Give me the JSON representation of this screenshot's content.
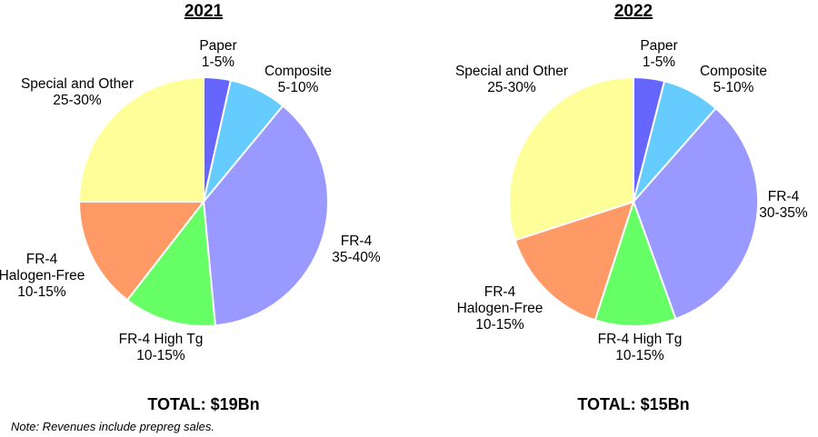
{
  "colors": {
    "Paper": "#6666ff",
    "Composite": "#66ccff",
    "FR-4": "#9999ff",
    "FR-4 High Tg": "#66ff66",
    "FR-4 Halogen-Free": "#ff9966",
    "Special and Other": "#ffff99"
  },
  "chart_data": [
    {
      "type": "pie",
      "title": "2021",
      "total_label": "TOTAL: $19Bn",
      "slices": [
        {
          "name": "Paper",
          "range": "1-5%",
          "value": 3.5
        },
        {
          "name": "Composite",
          "range": "5-10%",
          "value": 7.5
        },
        {
          "name": "FR-4",
          "range": "35-40%",
          "value": 37.5
        },
        {
          "name": "FR-4 High Tg",
          "range": "10-15%",
          "value": 12.0
        },
        {
          "name": "FR-4 Halogen-Free",
          "range": "10-15%",
          "value": 14.5
        },
        {
          "name": "Special and Other",
          "range": "25-30%",
          "value": 25.0
        }
      ]
    },
    {
      "type": "pie",
      "title": "2022",
      "total_label": "TOTAL: $15Bn",
      "slices": [
        {
          "name": "Paper",
          "range": "1-5%",
          "value": 4.0
        },
        {
          "name": "Composite",
          "range": "5-10%",
          "value": 7.5
        },
        {
          "name": "FR-4",
          "range": "30-35%",
          "value": 33.0
        },
        {
          "name": "FR-4 High Tg",
          "range": "10-15%",
          "value": 10.5
        },
        {
          "name": "FR-4 Halogen-Free",
          "range": "10-15%",
          "value": 15.0
        },
        {
          "name": "Special and Other",
          "range": "25-30%",
          "value": 30.0
        }
      ]
    }
  ],
  "note": "Note:  Revenues include prepreg sales."
}
